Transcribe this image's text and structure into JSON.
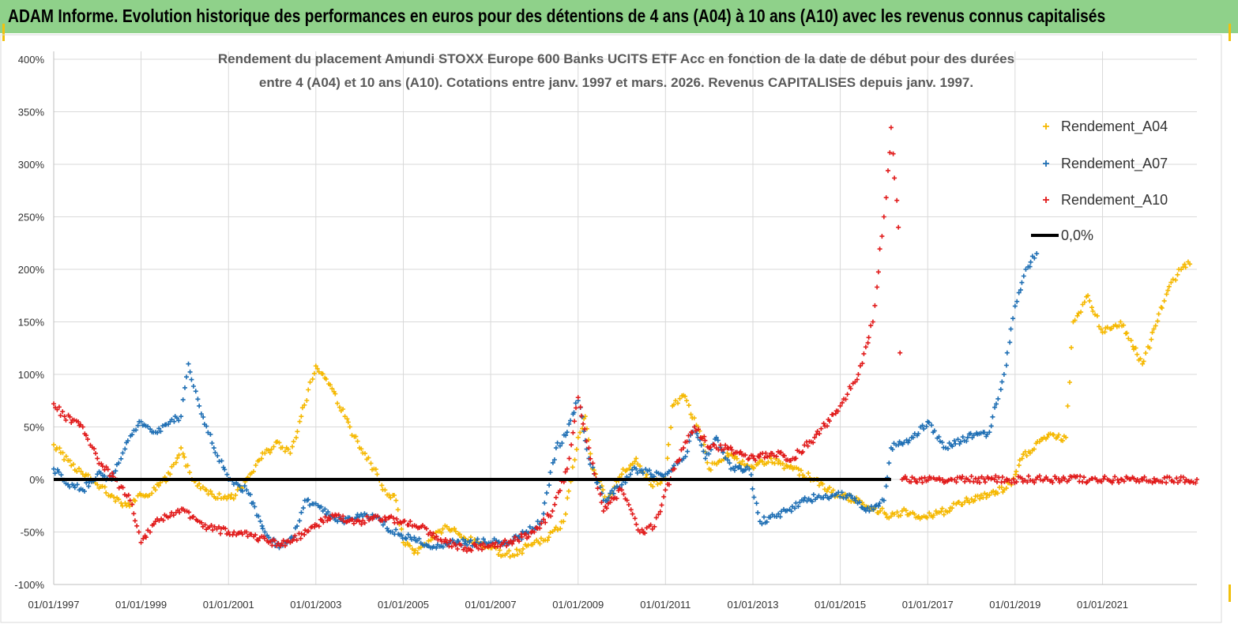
{
  "header": {
    "title": "ADAM Informe. Evolution historique des performances en euros pour des détentions de 4 ans (A04) à 10 ans (A10) avec les revenus connus capitalisés"
  },
  "chart_data": {
    "type": "scatter",
    "title_line1": "Rendement du placement Amundi STOXX Europe 600 Banks UCITS ETF Acc en fonction de la date de début pour des durées",
    "title_line2": "entre 4 (A04) et 10 ans (A10). Cotations entre janv. 1997 et mars. 2026. Revenus CAPITALISES depuis janv. 1997.",
    "xlabel": "",
    "ylabel": "",
    "x_range": [
      "1997-01-01",
      "2023-03-01"
    ],
    "ylim": [
      -100,
      400
    ],
    "y_ticks": [
      "-100%",
      "-50%",
      "0%",
      "50%",
      "100%",
      "150%",
      "200%",
      "250%",
      "300%",
      "350%",
      "400%"
    ],
    "x_ticks": [
      "01/01/1997",
      "01/01/1999",
      "01/01/2001",
      "01/01/2003",
      "01/01/2005",
      "01/01/2007",
      "01/01/2009",
      "01/01/2011",
      "01/01/2013",
      "01/01/2015",
      "01/01/2017",
      "01/01/2019",
      "01/01/2021"
    ],
    "grid": true,
    "legend_position": "right",
    "series": [
      {
        "name": "Rendement_A04",
        "color": "#f5b800",
        "marker": "plus",
        "points": [
          [
            "1997-01-01",
            33
          ],
          [
            "1997-05-01",
            18
          ],
          [
            "1997-09-01",
            5
          ],
          [
            "1998-01-01",
            -5
          ],
          [
            "1998-05-01",
            -15
          ],
          [
            "1998-09-01",
            -25
          ],
          [
            "1999-01-01",
            -15
          ],
          [
            "1999-05-01",
            -10
          ],
          [
            "1999-09-01",
            5
          ],
          [
            "1999-12-01",
            30
          ],
          [
            "2000-03-01",
            0
          ],
          [
            "2000-07-01",
            -10
          ],
          [
            "2000-11-01",
            -18
          ],
          [
            "2001-03-01",
            -15
          ],
          [
            "2001-07-01",
            5
          ],
          [
            "2001-11-01",
            25
          ],
          [
            "2002-03-01",
            35
          ],
          [
            "2002-06-01",
            25
          ],
          [
            "2002-09-01",
            60
          ],
          [
            "2003-01-01",
            108
          ],
          [
            "2003-05-01",
            90
          ],
          [
            "2003-09-01",
            60
          ],
          [
            "2004-01-01",
            30
          ],
          [
            "2004-05-01",
            10
          ],
          [
            "2004-08-01",
            -10
          ],
          [
            "2004-11-01",
            -20
          ],
          [
            "2005-01-01",
            -60
          ],
          [
            "2005-05-01",
            -70
          ],
          [
            "2005-09-01",
            -55
          ],
          [
            "2006-01-01",
            -45
          ],
          [
            "2006-05-01",
            -55
          ],
          [
            "2006-09-01",
            -60
          ],
          [
            "2007-01-01",
            -65
          ],
          [
            "2007-05-01",
            -72
          ],
          [
            "2007-09-01",
            -68
          ],
          [
            "2008-01-01",
            -60
          ],
          [
            "2008-05-01",
            -55
          ],
          [
            "2008-09-01",
            -40
          ],
          [
            "2009-01-01",
            40
          ],
          [
            "2009-03-01",
            60
          ],
          [
            "2009-05-01",
            10
          ],
          [
            "2009-09-01",
            -20
          ],
          [
            "2010-01-01",
            5
          ],
          [
            "2010-05-01",
            20
          ],
          [
            "2010-09-01",
            -5
          ],
          [
            "2011-01-01",
            0
          ],
          [
            "2011-03-01",
            70
          ],
          [
            "2011-06-01",
            80
          ],
          [
            "2011-10-01",
            50
          ],
          [
            "2012-01-01",
            10
          ],
          [
            "2012-06-01",
            25
          ],
          [
            "2012-12-01",
            10
          ],
          [
            "2013-06-01",
            20
          ],
          [
            "2013-12-01",
            10
          ],
          [
            "2014-06-01",
            0
          ],
          [
            "2014-12-01",
            -15
          ],
          [
            "2015-06-01",
            -20
          ],
          [
            "2015-12-01",
            -30
          ],
          [
            "2016-03-01",
            -35
          ],
          [
            "2016-06-01",
            -30
          ],
          [
            "2016-12-01",
            -35
          ],
          [
            "2017-06-01",
            -30
          ],
          [
            "2017-12-01",
            -20
          ],
          [
            "2018-06-01",
            -15
          ],
          [
            "2018-12-01",
            -5
          ],
          [
            "2019-03-01",
            20
          ],
          [
            "2019-09-01",
            40
          ],
          [
            "2020-03-01",
            40
          ],
          [
            "2020-05-01",
            150
          ],
          [
            "2020-09-01",
            175
          ],
          [
            "2021-01-01",
            140
          ],
          [
            "2021-06-01",
            150
          ],
          [
            "2021-12-01",
            110
          ],
          [
            "2022-06-01",
            170
          ],
          [
            "2022-10-01",
            200
          ],
          [
            "2023-01-01",
            205
          ]
        ]
      },
      {
        "name": "Rendement_A07",
        "color": "#1f6fb4",
        "marker": "plus",
        "points": [
          [
            "1997-01-01",
            10
          ],
          [
            "1997-05-01",
            -5
          ],
          [
            "1997-09-01",
            -10
          ],
          [
            "1998-01-01",
            5
          ],
          [
            "1998-05-01",
            0
          ],
          [
            "1998-09-01",
            35
          ],
          [
            "1999-01-01",
            55
          ],
          [
            "1999-05-01",
            45
          ],
          [
            "1999-09-01",
            55
          ],
          [
            "1999-12-01",
            60
          ],
          [
            "2000-02-01",
            110
          ],
          [
            "2000-05-01",
            70
          ],
          [
            "2000-09-01",
            30
          ],
          [
            "2001-01-01",
            0
          ],
          [
            "2001-06-01",
            -10
          ],
          [
            "2001-11-01",
            -50
          ],
          [
            "2002-03-01",
            -65
          ],
          [
            "2002-07-01",
            -55
          ],
          [
            "2002-10-01",
            -20
          ],
          [
            "2003-03-01",
            -30
          ],
          [
            "2003-07-01",
            -40
          ],
          [
            "2004-01-01",
            -35
          ],
          [
            "2004-06-01",
            -35
          ],
          [
            "2004-10-01",
            -50
          ],
          [
            "2005-03-01",
            -55
          ],
          [
            "2005-09-01",
            -65
          ],
          [
            "2006-03-01",
            -60
          ],
          [
            "2006-09-01",
            -60
          ],
          [
            "2007-03-01",
            -60
          ],
          [
            "2007-09-01",
            -55
          ],
          [
            "2008-03-01",
            -40
          ],
          [
            "2008-07-01",
            30
          ],
          [
            "2008-10-01",
            45
          ],
          [
            "2009-01-01",
            75
          ],
          [
            "2009-04-01",
            20
          ],
          [
            "2009-08-01",
            -20
          ],
          [
            "2010-01-01",
            -5
          ],
          [
            "2010-05-01",
            10
          ],
          [
            "2010-09-01",
            5
          ],
          [
            "2011-01-01",
            5
          ],
          [
            "2011-06-01",
            20
          ],
          [
            "2011-09-01",
            50
          ],
          [
            "2011-12-01",
            20
          ],
          [
            "2012-03-01",
            40
          ],
          [
            "2012-07-01",
            10
          ],
          [
            "2012-12-01",
            10
          ],
          [
            "2013-03-01",
            -40
          ],
          [
            "2013-07-01",
            -35
          ],
          [
            "2013-10-01",
            -30
          ],
          [
            "2014-03-01",
            -20
          ],
          [
            "2014-09-01",
            -15
          ],
          [
            "2015-03-01",
            -15
          ],
          [
            "2015-09-01",
            -30
          ],
          [
            "2016-01-01",
            -20
          ],
          [
            "2016-03-01",
            30
          ],
          [
            "2016-09-01",
            40
          ],
          [
            "2017-01-01",
            55
          ],
          [
            "2017-06-01",
            30
          ],
          [
            "2017-12-01",
            40
          ],
          [
            "2018-06-01",
            45
          ],
          [
            "2018-10-01",
            100
          ],
          [
            "2019-01-01",
            165
          ],
          [
            "2019-04-01",
            200
          ],
          [
            "2019-07-01",
            215
          ]
        ]
      },
      {
        "name": "Rendement_A10",
        "color": "#e11b1b",
        "marker": "plus",
        "points": [
          [
            "1997-01-01",
            72
          ],
          [
            "1997-04-01",
            60
          ],
          [
            "1997-09-01",
            50
          ],
          [
            "1998-01-01",
            20
          ],
          [
            "1998-06-01",
            0
          ],
          [
            "1998-10-01",
            -20
          ],
          [
            "1999-01-01",
            -60
          ],
          [
            "1999-05-01",
            -40
          ],
          [
            "1999-09-01",
            -35
          ],
          [
            "2000-01-01",
            -30
          ],
          [
            "2000-06-01",
            -45
          ],
          [
            "2001-01-01",
            -50
          ],
          [
            "2001-06-01",
            -50
          ],
          [
            "2001-12-01",
            -60
          ],
          [
            "2002-06-01",
            -60
          ],
          [
            "2002-12-01",
            -45
          ],
          [
            "2003-06-01",
            -35
          ],
          [
            "2004-01-01",
            -40
          ],
          [
            "2004-06-01",
            -35
          ],
          [
            "2005-01-01",
            -40
          ],
          [
            "2005-06-01",
            -45
          ],
          [
            "2006-01-01",
            -60
          ],
          [
            "2006-06-01",
            -65
          ],
          [
            "2007-01-01",
            -63
          ],
          [
            "2007-06-01",
            -60
          ],
          [
            "2008-01-01",
            -50
          ],
          [
            "2008-06-01",
            -30
          ],
          [
            "2008-10-01",
            10
          ],
          [
            "2009-01-01",
            78
          ],
          [
            "2009-04-01",
            30
          ],
          [
            "2009-08-01",
            -30
          ],
          [
            "2010-01-01",
            -10
          ],
          [
            "2010-06-01",
            -50
          ],
          [
            "2010-10-01",
            -45
          ],
          [
            "2011-01-01",
            -10
          ],
          [
            "2011-06-01",
            30
          ],
          [
            "2011-09-01",
            50
          ],
          [
            "2012-01-01",
            30
          ],
          [
            "2012-06-01",
            30
          ],
          [
            "2012-12-01",
            20
          ],
          [
            "2013-06-01",
            25
          ],
          [
            "2013-12-01",
            20
          ],
          [
            "2014-06-01",
            40
          ],
          [
            "2015-01-01",
            70
          ],
          [
            "2015-06-01",
            100
          ],
          [
            "2015-10-01",
            150
          ],
          [
            "2016-01-01",
            250
          ],
          [
            "2016-03-01",
            335
          ],
          [
            "2016-05-01",
            240
          ],
          [
            "2016-06-01",
            0
          ],
          [
            "2023-03-01",
            0
          ]
        ]
      },
      {
        "name": "0,0%",
        "color": "#000000",
        "marker": "line",
        "points": [
          [
            "1997-01-01",
            0
          ],
          [
            "2016-03-01",
            0
          ]
        ]
      }
    ]
  }
}
